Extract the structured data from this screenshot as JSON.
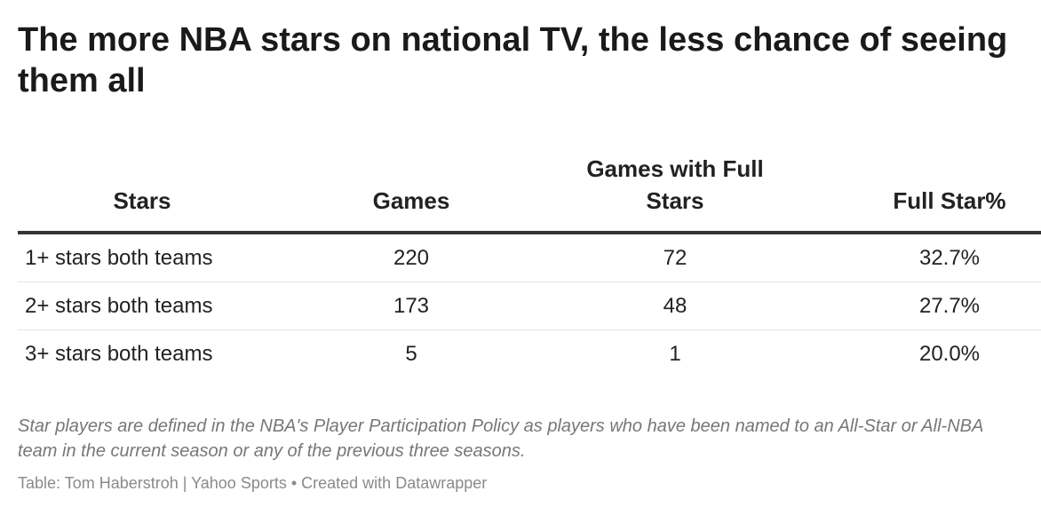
{
  "title": "The more NBA stars on national TV, the less chance of seeing them all",
  "chart_data": {
    "type": "table",
    "columns": [
      "Stars",
      "Games",
      "Games with Full Stars",
      "Full Star%"
    ],
    "rows": [
      [
        "1+ stars both teams",
        "220",
        "72",
        "32.7%"
      ],
      [
        "2+ stars both teams",
        "173",
        "48",
        "27.7%"
      ],
      [
        "3+ stars both teams",
        "5",
        "1",
        "20.0%"
      ]
    ]
  },
  "note": "Star players are defined in the NBA's Player Participation Policy as players who have been named to an All-Star or All-NBA team in the current season or any of the previous three seasons.",
  "source": "Table: Tom Haberstroh | Yahoo Sports • Created with Datawrapper"
}
